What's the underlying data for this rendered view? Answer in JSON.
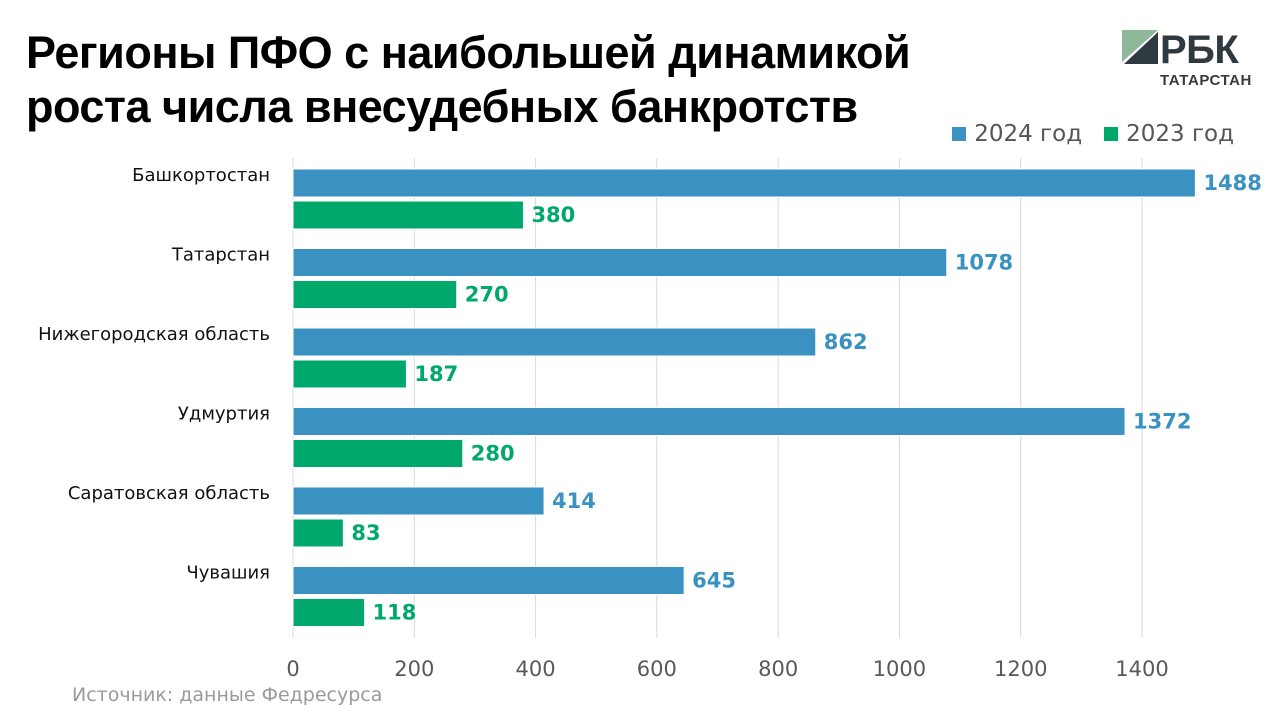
{
  "title": "Регионы ПФО с наибольшей динамикой роста числа внесудебных банкротств",
  "logo": {
    "main": "РБК",
    "sub": "ТАТАРСТАН"
  },
  "source": "Источник: данные Федресурса",
  "colors": {
    "series_2024": "#3a92c2",
    "series_2023": "#00a86b",
    "grid": "#d9d9d9",
    "logo_green": "#8fb79a",
    "logo_dark": "#2e3a40"
  },
  "chart_data": {
    "type": "bar",
    "orientation": "horizontal",
    "categories": [
      "Башкортостан",
      "Татарстан",
      "Нижегородская область",
      "Удмуртия",
      "Саратовская область",
      "Чувашия"
    ],
    "series": [
      {
        "name": "2024 год",
        "values": [
          1488,
          1078,
          862,
          1372,
          414,
          645
        ]
      },
      {
        "name": "2023 год",
        "values": [
          380,
          270,
          187,
          280,
          83,
          118
        ]
      }
    ],
    "xlim": [
      0,
      1400
    ],
    "xticks": [
      0,
      200,
      400,
      600,
      800,
      1000,
      1200,
      1400
    ],
    "grid": "vertical",
    "legend": "top-right",
    "xlabel": "",
    "ylabel": ""
  }
}
